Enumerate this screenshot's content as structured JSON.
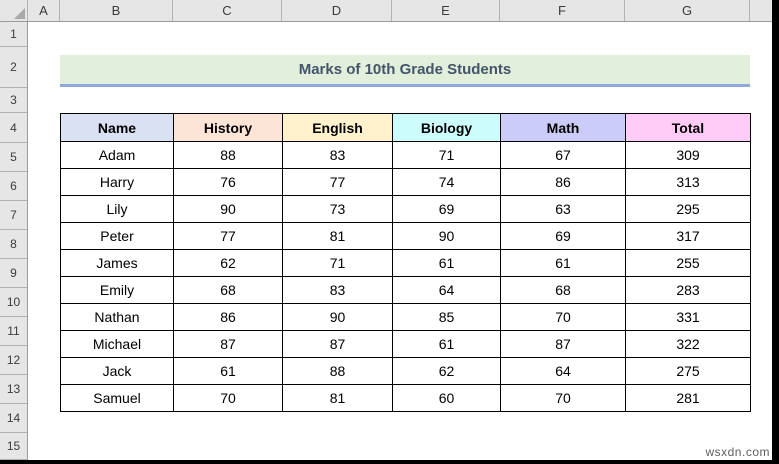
{
  "app": {
    "kind": "spreadsheet"
  },
  "column_headers": [
    "A",
    "B",
    "C",
    "D",
    "E",
    "F",
    "G"
  ],
  "row_headers": [
    "1",
    "2",
    "3",
    "4",
    "5",
    "6",
    "7",
    "8",
    "9",
    "10",
    "11",
    "12",
    "13",
    "14",
    "15"
  ],
  "banner": {
    "title": "Marks of 10th Grade Students",
    "bg_color": "#E2EFDA",
    "text_color": "#44546A",
    "underline_color": "#8EAADB"
  },
  "table": {
    "headers": [
      {
        "label": "Name",
        "color": "#D9E1F2"
      },
      {
        "label": "History",
        "color": "#FCE4D6"
      },
      {
        "label": "English",
        "color": "#FFF2CC"
      },
      {
        "label": "Biology",
        "color": "#CCFCFC"
      },
      {
        "label": "Math",
        "color": "#CCCCF8"
      },
      {
        "label": "Total",
        "color": "#FFCCF8"
      }
    ],
    "rows": [
      [
        "Adam",
        "88",
        "83",
        "71",
        "67",
        "309"
      ],
      [
        "Harry",
        "76",
        "77",
        "74",
        "86",
        "313"
      ],
      [
        "Lily",
        "90",
        "73",
        "69",
        "63",
        "295"
      ],
      [
        "Peter",
        "77",
        "81",
        "90",
        "69",
        "317"
      ],
      [
        "James",
        "62",
        "71",
        "61",
        "61",
        "255"
      ],
      [
        "Emily",
        "68",
        "83",
        "64",
        "68",
        "283"
      ],
      [
        "Nathan",
        "86",
        "90",
        "85",
        "70",
        "331"
      ],
      [
        "Michael",
        "87",
        "87",
        "61",
        "87",
        "322"
      ],
      [
        "Jack",
        "61",
        "88",
        "62",
        "64",
        "275"
      ],
      [
        "Samuel",
        "70",
        "81",
        "60",
        "70",
        "281"
      ]
    ]
  },
  "watermark": "wsxdn.com"
}
